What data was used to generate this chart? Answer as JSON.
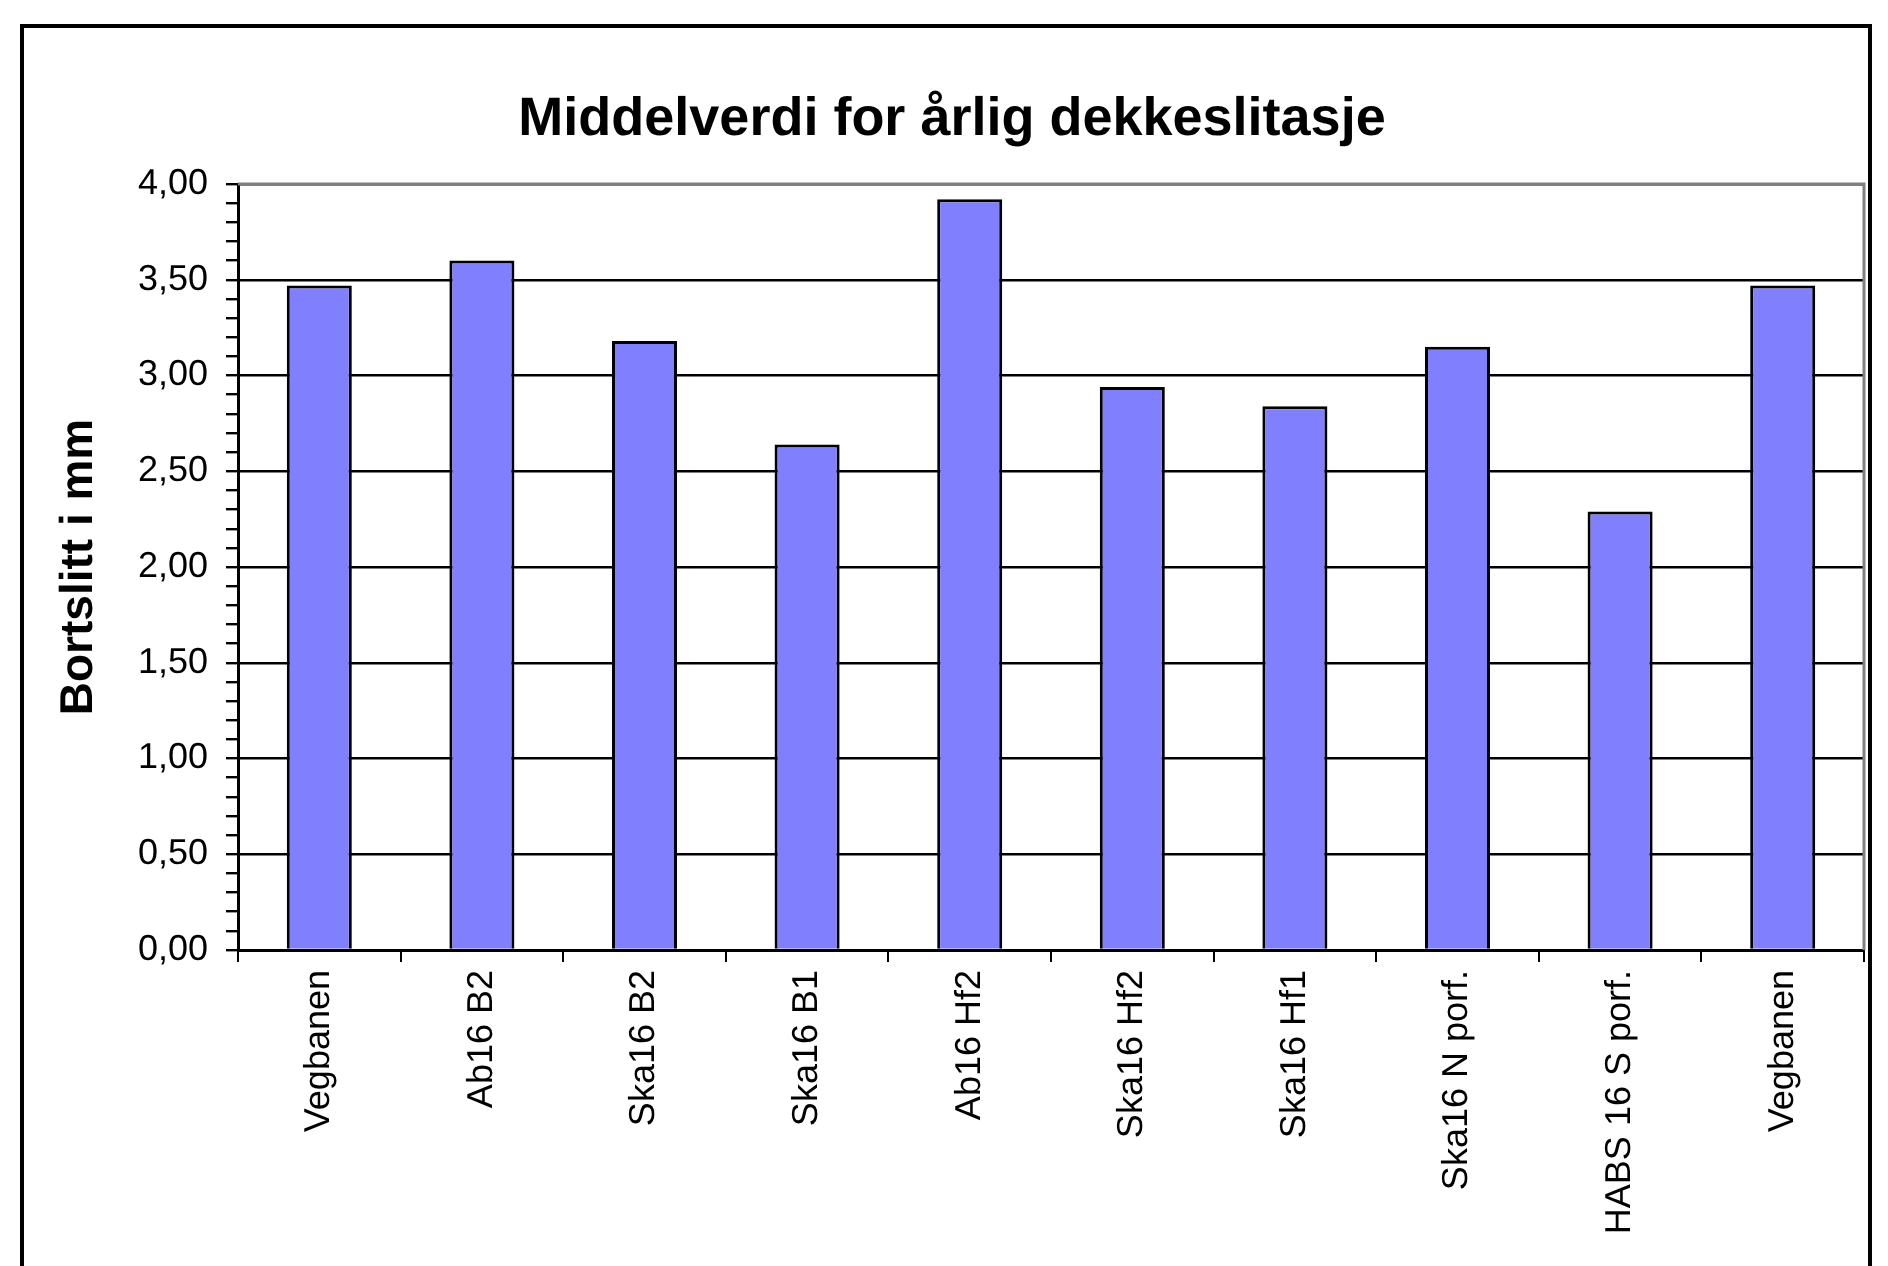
{
  "chart_data": {
    "type": "bar",
    "title": "Middelverdi for årlig dekkeslitasje",
    "ylabel": "Bortslitt i mm",
    "categories": [
      "Vegbanen",
      "Ab16 B2",
      "Ska16 B2",
      "Ska16 B1",
      "Ab16 Hf2",
      "Ska16 Hf2",
      "Ska16 Hf1",
      "Ska16 N porf.",
      "HABS 16 S porf.",
      "Vegbanen"
    ],
    "values": [
      3.47,
      3.6,
      3.18,
      2.64,
      3.92,
      2.94,
      2.84,
      3.15,
      2.29,
      3.47
    ],
    "color": "#8080ff",
    "ylim": [
      0,
      4
    ],
    "yticks": [
      {
        "value": 0,
        "label": "0,00"
      },
      {
        "value": 0.1,
        "label": null
      },
      {
        "value": 0.2,
        "label": null
      },
      {
        "value": 0.3,
        "label": null
      },
      {
        "value": 0.4,
        "label": null
      },
      {
        "value": 0.5,
        "label": "0,50"
      },
      {
        "value": 0.6,
        "label": null
      },
      {
        "value": 0.7,
        "label": null
      },
      {
        "value": 0.8,
        "label": null
      },
      {
        "value": 0.9,
        "label": null
      },
      {
        "value": 1,
        "label": "1,00"
      },
      {
        "value": 1.1,
        "label": null
      },
      {
        "value": 1.2,
        "label": null
      },
      {
        "value": 1.3,
        "label": null
      },
      {
        "value": 1.4,
        "label": null
      },
      {
        "value": 1.5,
        "label": "1,50"
      },
      {
        "value": 1.6,
        "label": null
      },
      {
        "value": 1.7,
        "label": null
      },
      {
        "value": 1.8,
        "label": null
      },
      {
        "value": 1.9,
        "label": null
      },
      {
        "value": 2,
        "label": "2,00"
      },
      {
        "value": 2.1,
        "label": null
      },
      {
        "value": 2.2,
        "label": null
      },
      {
        "value": 2.3,
        "label": null
      },
      {
        "value": 2.4,
        "label": null
      },
      {
        "value": 2.5,
        "label": "2,50"
      },
      {
        "value": 2.6,
        "label": null
      },
      {
        "value": 2.7,
        "label": null
      },
      {
        "value": 2.8,
        "label": null
      },
      {
        "value": 2.9,
        "label": null
      },
      {
        "value": 3,
        "label": "3,00"
      },
      {
        "value": 3.1,
        "label": null
      },
      {
        "value": 3.2,
        "label": null
      },
      {
        "value": 3.3,
        "label": null
      },
      {
        "value": 3.4,
        "label": null
      },
      {
        "value": 3.5,
        "label": "3,50"
      },
      {
        "value": 3.6,
        "label": null
      },
      {
        "value": 3.7,
        "label": null
      },
      {
        "value": 3.8,
        "label": null
      },
      {
        "value": 3.9,
        "label": null
      },
      {
        "value": 4,
        "label": "4,00"
      }
    ],
    "grid": "y",
    "legend": false
  }
}
